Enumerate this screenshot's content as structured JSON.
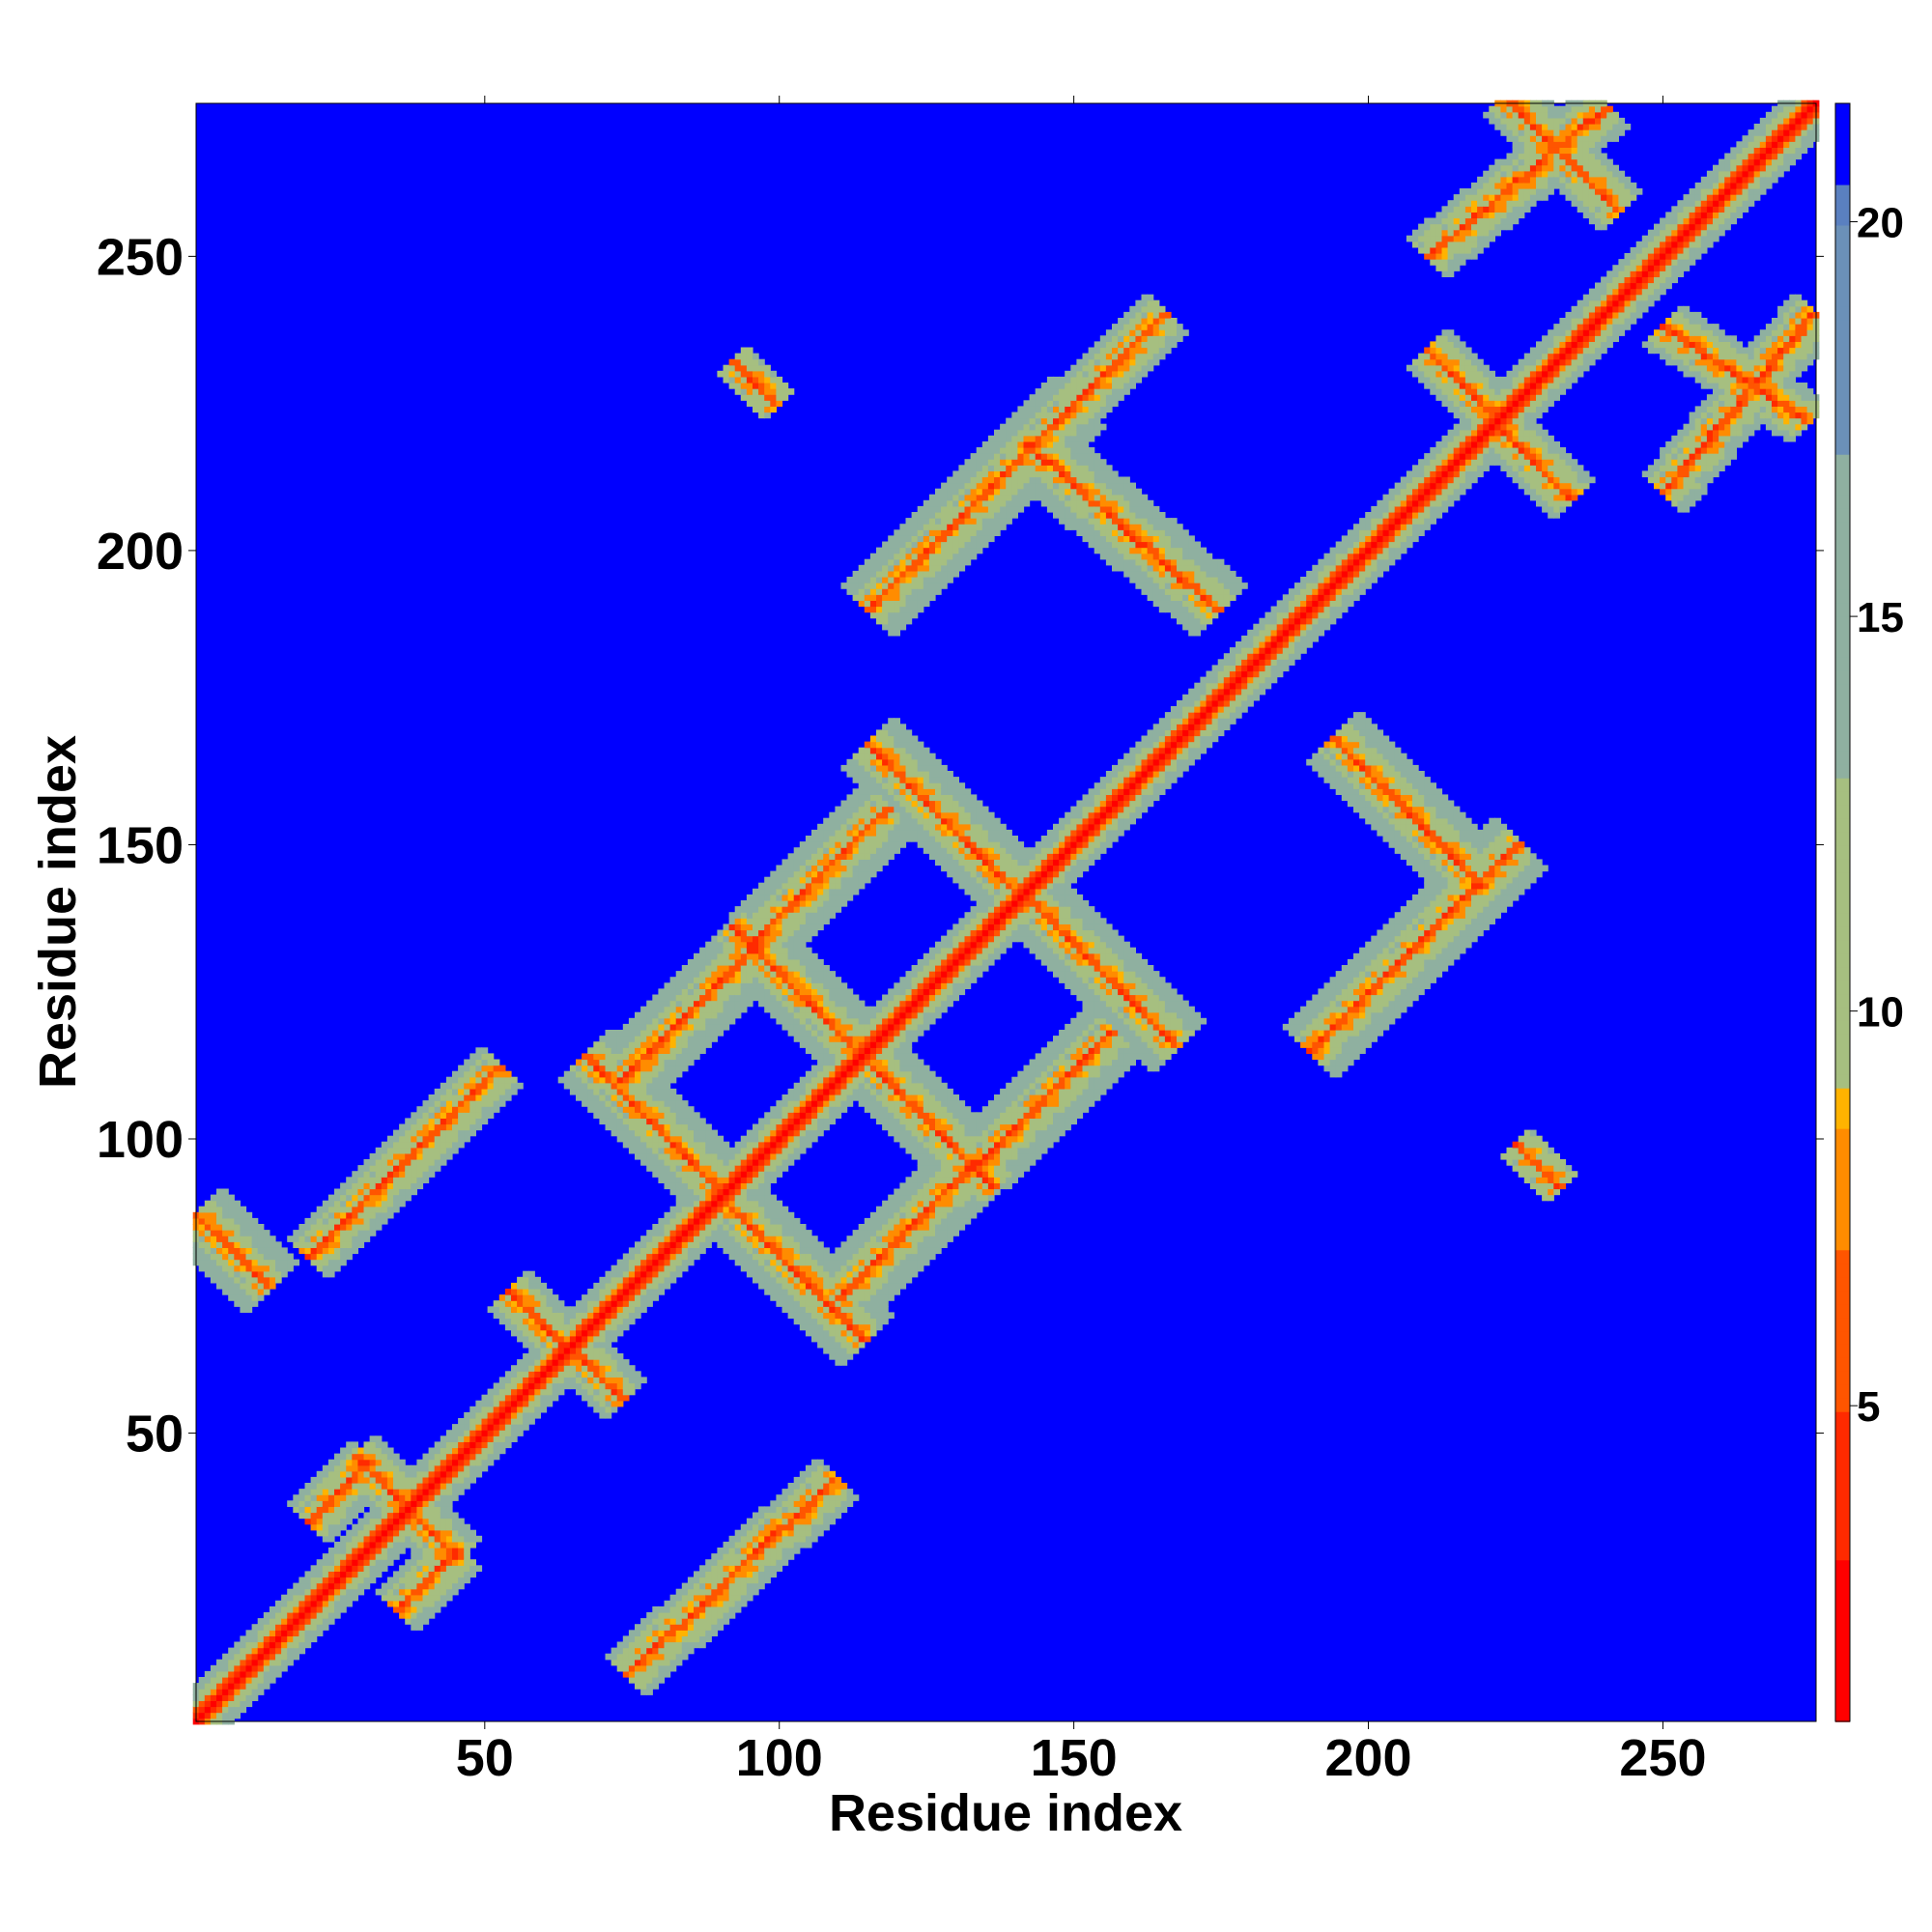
{
  "chart_data": {
    "type": "heatmap",
    "title": "",
    "xlabel": "Residue index",
    "ylabel": "Residue index",
    "xlim": [
      1,
      276
    ],
    "ylim": [
      1,
      276
    ],
    "x_ticks": [
      50,
      100,
      150,
      200,
      250
    ],
    "y_ticks": [
      50,
      100,
      150,
      200,
      250
    ],
    "x_tick_labels": [
      "50",
      "100",
      "150",
      "200",
      "250"
    ],
    "y_tick_labels": [
      "50",
      "100",
      "150",
      "200",
      "250"
    ],
    "grid": false,
    "background_value": 21,
    "colorbar": {
      "range": [
        1,
        21.5
      ],
      "ticks": [
        5,
        10,
        15,
        20
      ],
      "tick_labels": [
        "5",
        "10",
        "15",
        "20"
      ],
      "placement": "right",
      "stops": [
        {
          "value": 1,
          "color": "#ff0000"
        },
        {
          "value": 3,
          "color": "#ff2a00"
        },
        {
          "value": 5,
          "color": "#ff5500"
        },
        {
          "value": 7,
          "color": "#ff8c00"
        },
        {
          "value": 8.5,
          "color": "#ffb300"
        },
        {
          "value": 9,
          "color": "#a6bf80"
        },
        {
          "value": 13,
          "color": "#8fb0a0"
        },
        {
          "value": 17,
          "color": "#6b90b8"
        },
        {
          "value": 20,
          "color": "#5a80c0"
        },
        {
          "value": 20.5,
          "color": "#0000ff"
        }
      ]
    },
    "features": [
      {
        "kind": "anti_diagonal",
        "from": [
          1,
          87
        ],
        "to": [
          13,
          75
        ],
        "width": 4
      },
      {
        "kind": "anti_diagonal",
        "from": [
          28,
          46
        ],
        "to": [
          45,
          29
        ],
        "width": 3
      },
      {
        "kind": "anti_diagonal",
        "from": [
          54,
          74
        ],
        "to": [
          73,
          56
        ],
        "width": 3
      },
      {
        "kind": "anti_diagonal",
        "from": [
          67,
          114
        ],
        "to": [
          114,
          66
        ],
        "width": 4
      },
      {
        "kind": "anti_diagonal",
        "from": [
          92,
          136
        ],
        "to": [
          136,
          92
        ],
        "width": 4
      },
      {
        "kind": "anti_diagonal",
        "from": [
          115,
          167
        ],
        "to": [
          167,
          116
        ],
        "width": 4
      },
      {
        "kind": "anti_diagonal",
        "from": [
          142,
          218
        ],
        "to": [
          174,
          190
        ],
        "width": 4
      },
      {
        "kind": "anti_diagonal",
        "from": [
          194,
          168
        ],
        "to": [
          219,
          143
        ],
        "width": 4
      },
      {
        "kind": "anti_diagonal",
        "from": [
          210,
          234
        ],
        "to": [
          234,
          209
        ],
        "width": 3
      },
      {
        "kind": "anti_diagonal",
        "from": [
          223,
          277
        ],
        "to": [
          242,
          258
        ],
        "width": 3
      },
      {
        "kind": "anti_diagonal",
        "from": [
          250,
          238
        ],
        "to": [
          274,
          222
        ],
        "width": 3
      },
      {
        "kind": "anti_diagonal",
        "from": [
          92,
          232
        ],
        "to": [
          99,
          225
        ],
        "width": 2
      },
      {
        "kind": "anti_diagonal",
        "from": [
          225,
          99
        ],
        "to": [
          232,
          92
        ],
        "width": 2
      },
      {
        "kind": "parallel",
        "from": [
          20,
          80
        ],
        "to": [
          52,
          112
        ],
        "width": 3
      },
      {
        "kind": "parallel",
        "from": [
          74,
          9
        ],
        "to": [
          109,
          42
        ],
        "width": 3
      },
      {
        "kind": "parallel",
        "from": [
          73,
          110
        ],
        "to": [
          118,
          156
        ],
        "width": 4
      },
      {
        "kind": "parallel",
        "from": [
          110,
          73
        ],
        "to": [
          156,
          118
        ],
        "width": 4
      },
      {
        "kind": "parallel",
        "from": [
          115,
          190
        ],
        "to": [
          150,
          225
        ],
        "width": 4
      },
      {
        "kind": "parallel",
        "from": [
          190,
          115
        ],
        "to": [
          225,
          150
        ],
        "width": 4
      },
      {
        "kind": "parallel",
        "from": [
          150,
          225
        ],
        "to": [
          165,
          240
        ],
        "width": 3
      },
      {
        "kind": "parallel",
        "from": [
          210,
          250
        ],
        "to": [
          240,
          275
        ],
        "width": 3
      },
      {
        "kind": "parallel",
        "from": [
          250,
          210
        ],
        "to": [
          275,
          240
        ],
        "width": 3
      },
      {
        "kind": "parallel",
        "from": [
          20,
          35
        ],
        "to": [
          30,
          45
        ],
        "width": 3
      },
      {
        "kind": "parallel",
        "from": [
          35,
          20
        ],
        "to": [
          45,
          30
        ],
        "width": 3
      }
    ]
  }
}
